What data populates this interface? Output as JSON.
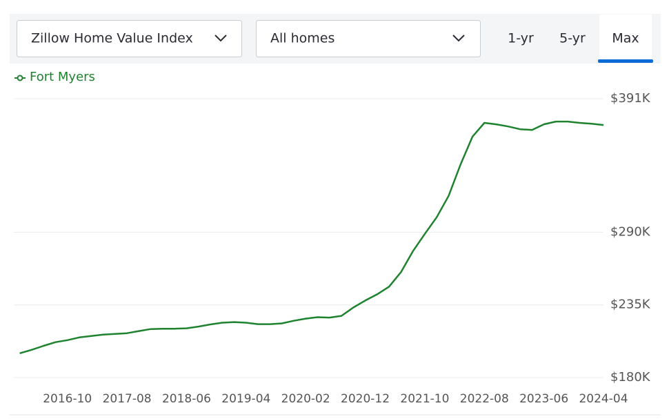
{
  "controls": {
    "index_select": "Zillow Home Value Index",
    "home_type_select": "All homes",
    "ranges": [
      "1-yr",
      "5-yr",
      "Max"
    ],
    "selected_range": 2
  },
  "chart_data": {
    "type": "line",
    "x": [
      "2016-02",
      "2016-04",
      "2016-06",
      "2016-08",
      "2016-10",
      "2016-12",
      "2017-02",
      "2017-04",
      "2017-06",
      "2017-08",
      "2017-10",
      "2017-12",
      "2018-02",
      "2018-04",
      "2018-06",
      "2018-08",
      "2018-10",
      "2018-12",
      "2019-02",
      "2019-04",
      "2019-06",
      "2019-08",
      "2019-10",
      "2019-12",
      "2020-02",
      "2020-04",
      "2020-06",
      "2020-08",
      "2020-10",
      "2020-12",
      "2021-02",
      "2021-04",
      "2021-06",
      "2021-08",
      "2021-10",
      "2021-12",
      "2022-02",
      "2022-04",
      "2022-06",
      "2022-08",
      "2022-10",
      "2022-12",
      "2023-02",
      "2023-04",
      "2023-06",
      "2023-08",
      "2023-10",
      "2023-12",
      "2024-02",
      "2024-04"
    ],
    "series": [
      {
        "name": "Fort Myers",
        "color": "#1e822e",
        "values": [
          198400,
          201000,
          204000,
          206800,
          208300,
          210400,
          211500,
          212500,
          213000,
          213600,
          215200,
          216700,
          217000,
          217000,
          217300,
          218600,
          220200,
          221500,
          222000,
          221500,
          220400,
          220400,
          221000,
          223000,
          224600,
          225700,
          225400,
          226700,
          233000,
          238300,
          243000,
          248800,
          259800,
          275500,
          288700,
          301300,
          317500,
          341200,
          362200,
          372700,
          371600,
          370000,
          367900,
          367400,
          371600,
          373700,
          373700,
          372700,
          372100,
          371100
        ]
      }
    ],
    "xlim": [
      "2016-01",
      "2024-04"
    ],
    "xticks": [
      "2016-10",
      "2017-08",
      "2018-06",
      "2019-04",
      "2020-02",
      "2020-12",
      "2021-10",
      "2022-08",
      "2023-06",
      "2024-04"
    ],
    "ylim": [
      180000,
      391000
    ],
    "yticks": [
      {
        "value": 180000,
        "label": "$180K"
      },
      {
        "value": 235000,
        "label": "$235K"
      },
      {
        "value": 290000,
        "label": "$290K"
      },
      {
        "value": 391000,
        "label": "$391K"
      }
    ],
    "grid": true
  }
}
